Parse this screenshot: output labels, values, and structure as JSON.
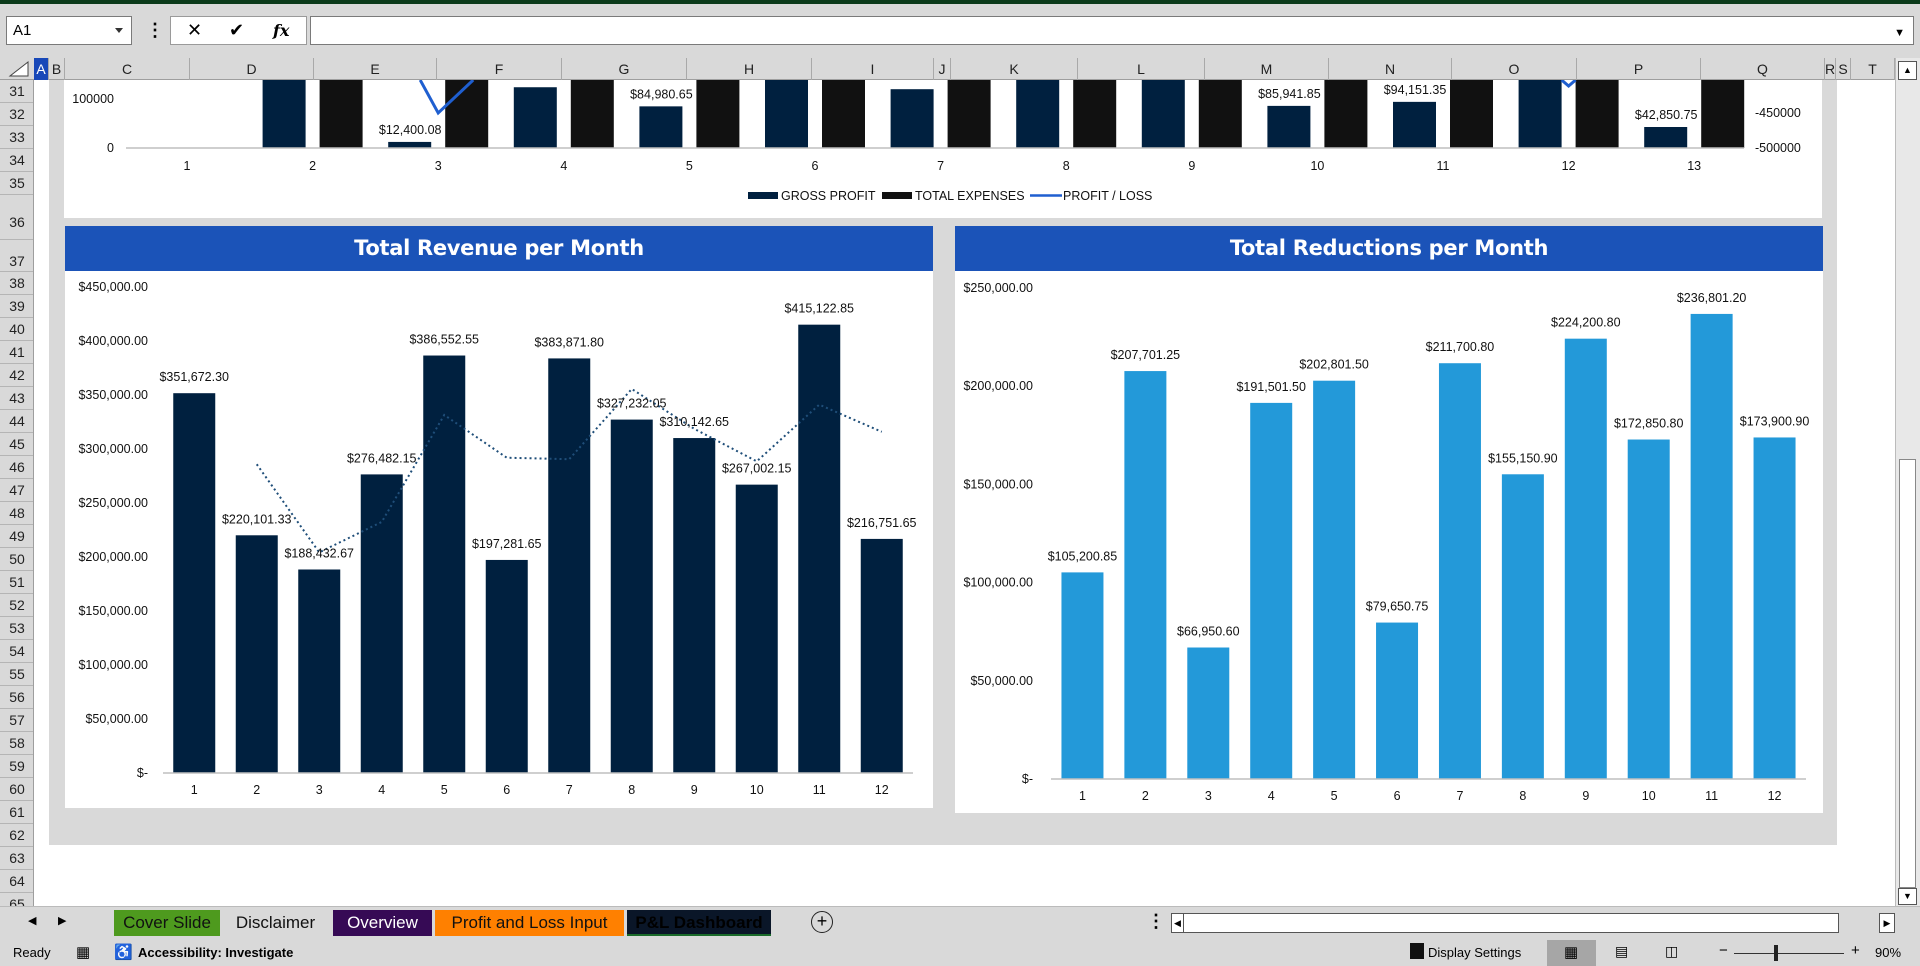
{
  "formula_bar": {
    "name_box": "A1",
    "formula": "",
    "cancel_icon": "x-icon",
    "enter_icon": "check-icon",
    "function_icon": "fx-icon"
  },
  "columns": [
    "A",
    "B",
    "C",
    "D",
    "E",
    "F",
    "G",
    "H",
    "I",
    "J",
    "K",
    "L",
    "M",
    "N",
    "O",
    "P",
    "Q",
    "R",
    "S",
    "T"
  ],
  "selected_column": "A",
  "rows": [
    "31",
    "32",
    "33",
    "34",
    "35",
    "36",
    "37",
    "38",
    "39",
    "40",
    "41",
    "42",
    "43",
    "44",
    "45",
    "46",
    "47",
    "48",
    "49",
    "50",
    "51",
    "52",
    "53",
    "54",
    "55",
    "56",
    "57",
    "58",
    "59",
    "60",
    "61",
    "62",
    "63",
    "64",
    "65"
  ],
  "charts": {
    "revenue_title": "Total Revenue per Month",
    "reductions_title": "Total Reductions per Month"
  },
  "chart_data": [
    {
      "type": "bar+line",
      "categories": [
        "1",
        "2",
        "3",
        "4",
        "5",
        "6",
        "7",
        "8",
        "9",
        "10",
        "11",
        "12",
        "13"
      ],
      "legend": "bottom",
      "y_ticks_left": [
        "100000",
        "0"
      ],
      "y_ticks_right": [
        "-450000",
        "-500000"
      ],
      "series": [
        {
          "name": "GROSS PROFIT",
          "color": "#00203F",
          "values": [
            null,
            null,
            12400.08,
            124000,
            84980.65,
            null,
            120000,
            null,
            null,
            85941.85,
            94151.35,
            null,
            42850.75
          ],
          "clipped_above": [
            "2",
            "6",
            "8",
            "9",
            "12"
          ],
          "data_labels": [
            "",
            "",
            "$12,400.08",
            "",
            "$84,980.65",
            "",
            "",
            "",
            "",
            "$85,941.85",
            "$94,151.35",
            "",
            "$42,850.75"
          ]
        },
        {
          "name": "TOTAL EXPENSES",
          "color": "#111111",
          "values": [
            null,
            null,
            null,
            null,
            null,
            null,
            null,
            null,
            null,
            null,
            null,
            null,
            null
          ],
          "clipped_above": [
            "2",
            "3",
            "4",
            "5",
            "6",
            "7",
            "8",
            "9",
            "10",
            "11",
            "12",
            "13"
          ]
        },
        {
          "name": "PROFIT / LOSS",
          "type": "line",
          "axis": "secondary",
          "color": "#1F5FD0",
          "values": [
            null,
            null,
            -450000,
            null,
            null,
            null,
            null,
            null,
            null,
            null,
            null,
            null,
            null
          ]
        }
      ]
    },
    {
      "type": "bar",
      "title": "Total Revenue per Month",
      "categories": [
        "1",
        "2",
        "3",
        "4",
        "5",
        "6",
        "7",
        "8",
        "9",
        "10",
        "11",
        "12"
      ],
      "values": [
        351672.3,
        220101.33,
        188432.67,
        276482.15,
        386552.55,
        197281.65,
        383871.8,
        327232.05,
        310142.65,
        267002.15,
        415122.85,
        216751.65
      ],
      "data_labels": [
        "$351,672.30",
        "$220,101.33",
        "$188,432.67",
        "$276,482.15",
        "$386,552.55",
        "$197,281.65",
        "$383,871.80",
        "$327,232.05",
        "$310,142.65",
        "$267,002.15",
        "$415,122.85",
        "$216,751.65"
      ],
      "ylim": [
        0,
        450000
      ],
      "y_ticks": [
        "$-",
        "$50,000.00",
        "$100,000.00",
        "$150,000.00",
        "$200,000.00",
        "$250,000.00",
        "$300,000.00",
        "$350,000.00",
        "$400,000.00",
        "$450,000.00"
      ],
      "color": "#00203F",
      "trendline": {
        "type": "moving_average",
        "period": 2,
        "style": "dotted",
        "color": "#1F4E79"
      }
    },
    {
      "type": "bar",
      "title": "Total Reductions per Month",
      "categories": [
        "1",
        "2",
        "3",
        "4",
        "5",
        "6",
        "7",
        "8",
        "9",
        "10",
        "11",
        "12"
      ],
      "values": [
        105200.85,
        207701.25,
        66950.6,
        191501.5,
        202801.5,
        79650.75,
        211700.8,
        155150.9,
        224200.8,
        172850.8,
        236801.2,
        173900.9
      ],
      "data_labels": [
        "$105,200.85",
        "$207,701.25",
        "$66,950.60",
        "$191,501.50",
        "$202,801.50",
        "$79,650.75",
        "$211,700.80",
        "$155,150.90",
        "$224,200.80",
        "$172,850.80",
        "$236,801.20",
        "$173,900.90"
      ],
      "ylim": [
        0,
        250000
      ],
      "y_ticks": [
        "$-",
        "$50,000.00",
        "$100,000.00",
        "$150,000.00",
        "$200,000.00",
        "$250,000.00"
      ],
      "color": "#2399D9"
    }
  ],
  "sheet_tabs": [
    {
      "label": "Cover Slide",
      "bg": "#4E9A1E",
      "fg": "#111111"
    },
    {
      "label": "Disclaimer",
      "bg": "#d9d9d9",
      "fg": "#111111"
    },
    {
      "label": "Overview",
      "bg": "#360A55",
      "fg": "#ffffff"
    },
    {
      "label": "Profit and Loss Input",
      "bg": "#FF8000",
      "fg": "#111111"
    },
    {
      "label": "P&L Dashboard",
      "bg": "#0A1628",
      "fg": "#000000",
      "active": true
    }
  ],
  "status": {
    "mode": "Ready",
    "accessibility": "Accessibility: Investigate",
    "display_settings": "Display Settings",
    "zoom": "90%",
    "zoom_level": 90
  }
}
